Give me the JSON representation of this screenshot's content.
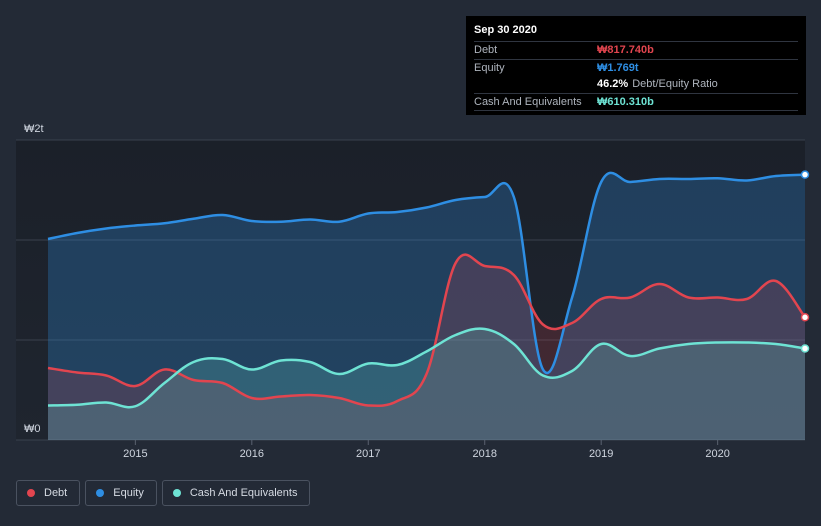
{
  "colors": {
    "debt": "#e2454f",
    "equity": "#2e8ee3",
    "cash": "#6ee3d4"
  },
  "tooltip": {
    "date": "Sep 30 2020",
    "debt_label": "Debt",
    "debt_value": "₩817.740b",
    "equity_label": "Equity",
    "equity_value": "₩1.769t",
    "ratio_value": "46.2%",
    "ratio_label": "Debt/Equity Ratio",
    "cash_label": "Cash And Equivalents",
    "cash_value": "₩610.310b"
  },
  "legend": {
    "debt": "Debt",
    "equity": "Equity",
    "cash": "Cash And Equivalents"
  },
  "chart_data": {
    "type": "area",
    "title": "",
    "xlabel": "",
    "ylabel": "",
    "y_top_label": "₩2t",
    "y_bottom_label": "₩0",
    "ylim": [
      0,
      2000
    ],
    "xlim": [
      2014.25,
      2020.75
    ],
    "x_ticks": [
      {
        "value": 2015,
        "label": "2015"
      },
      {
        "value": 2016,
        "label": "2016"
      },
      {
        "value": 2017,
        "label": "2017"
      },
      {
        "value": 2018,
        "label": "2018"
      },
      {
        "value": 2019,
        "label": "2019"
      },
      {
        "value": 2020,
        "label": "2020"
      }
    ],
    "series": [
      {
        "name": "Equity",
        "key": "equity",
        "x": [
          2014.25,
          2014.5,
          2014.75,
          2015.0,
          2015.25,
          2015.5,
          2015.75,
          2016.0,
          2016.25,
          2016.5,
          2016.75,
          2017.0,
          2017.25,
          2017.5,
          2017.75,
          2018.0,
          2018.25,
          2018.5,
          2018.75,
          2019.0,
          2019.25,
          2019.5,
          2019.75,
          2020.0,
          2020.25,
          2020.5,
          2020.75
        ],
        "values": [
          1340,
          1380,
          1410,
          1430,
          1445,
          1475,
          1500,
          1460,
          1455,
          1470,
          1455,
          1510,
          1520,
          1550,
          1600,
          1620,
          1620,
          470,
          950,
          1720,
          1720,
          1740,
          1740,
          1745,
          1730,
          1760,
          1769
        ]
      },
      {
        "name": "Debt",
        "key": "debt",
        "x": [
          2014.25,
          2014.5,
          2014.75,
          2015.0,
          2015.25,
          2015.5,
          2015.75,
          2016.0,
          2016.25,
          2016.5,
          2016.75,
          2017.0,
          2017.25,
          2017.5,
          2017.75,
          2018.0,
          2018.25,
          2018.5,
          2018.75,
          2019.0,
          2019.25,
          2019.5,
          2019.75,
          2020.0,
          2020.25,
          2020.5,
          2020.75
        ],
        "values": [
          480,
          450,
          430,
          360,
          470,
          400,
          380,
          280,
          290,
          300,
          280,
          230,
          260,
          440,
          1180,
          1160,
          1100,
          770,
          780,
          940,
          950,
          1040,
          950,
          950,
          940,
          1060,
          818
        ]
      },
      {
        "name": "Cash And Equivalents",
        "key": "cash",
        "x": [
          2014.25,
          2014.5,
          2014.75,
          2015.0,
          2015.25,
          2015.5,
          2015.75,
          2016.0,
          2016.25,
          2016.5,
          2016.75,
          2017.0,
          2017.25,
          2017.5,
          2017.75,
          2018.0,
          2018.25,
          2018.5,
          2018.75,
          2019.0,
          2019.25,
          2019.5,
          2019.75,
          2020.0,
          2020.25,
          2020.5,
          2020.75
        ],
        "values": [
          230,
          235,
          250,
          225,
          380,
          520,
          540,
          470,
          530,
          520,
          440,
          510,
          500,
          590,
          700,
          740,
          640,
          430,
          460,
          640,
          560,
          610,
          640,
          650,
          650,
          640,
          610
        ]
      }
    ]
  }
}
